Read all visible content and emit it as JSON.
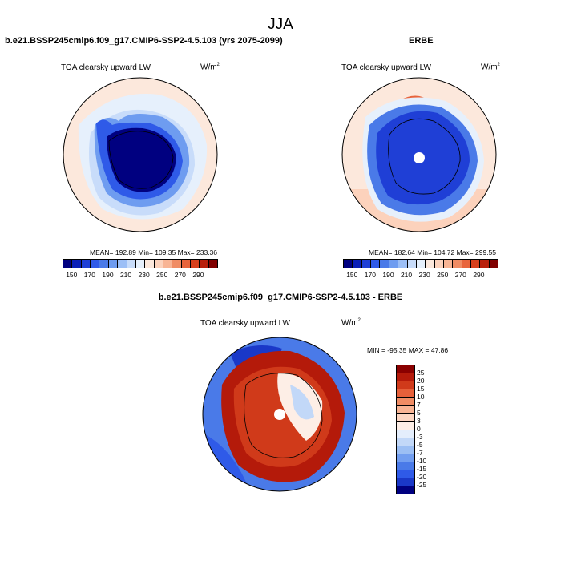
{
  "figure": {
    "title": "JJA"
  },
  "panels": [
    {
      "title": "b.e21.BSSP245cmip6.f09_g17.CMIP6-SSP2-4.5.103 (yrs 2075-2099)",
      "variable": "TOA clearsky upward LW",
      "units": "W/m",
      "units_exp": "2",
      "stats": "MEAN= 192.89  Min= 109.35  Max= 233.36"
    },
    {
      "title": "ERBE",
      "variable": "TOA clearsky upward LW",
      "units": "W/m",
      "units_exp": "2",
      "stats": "MEAN= 182.64  Min= 104.72  Max= 299.55"
    },
    {
      "title": "b.e21.BSSP245cmip6.f09_g17.CMIP6-SSP2-4.5.103 - ERBE",
      "variable": "TOA clearsky upward LW",
      "units": "W/m",
      "units_exp": "2",
      "stats": "MIN = -95.35 MAX =  47.86"
    }
  ],
  "colorbar_abs": {
    "colors": [
      "#000080",
      "#0a1fb8",
      "#1f3fd6",
      "#2f5ae8",
      "#4a7ae8",
      "#6e9cf0",
      "#9cbff6",
      "#c8dcfa",
      "#e6f0fc",
      "#fce8dc",
      "#fcd2bc",
      "#f8b494",
      "#f08c64",
      "#e8643c",
      "#d8401c",
      "#b8200c",
      "#800000"
    ],
    "ticks": [
      "150",
      "170",
      "190",
      "210",
      "230",
      "250",
      "270",
      "290"
    ]
  },
  "colorbar_diff": {
    "colors": [
      "#8a0000",
      "#b41a0a",
      "#d03a1a",
      "#e6603a",
      "#f08c64",
      "#f8b494",
      "#fcd6c2",
      "#fdeee6",
      "#e4eefc",
      "#c2d8f8",
      "#9cbff4",
      "#729ef0",
      "#4a7ae8",
      "#2f5ae8",
      "#1a38c8",
      "#000080"
    ],
    "ticks": [
      "25",
      "20",
      "15",
      "10",
      "7",
      "5",
      "3",
      "0",
      "-3",
      "-5",
      "-7",
      "-10",
      "-15",
      "-20",
      "-25"
    ]
  }
}
